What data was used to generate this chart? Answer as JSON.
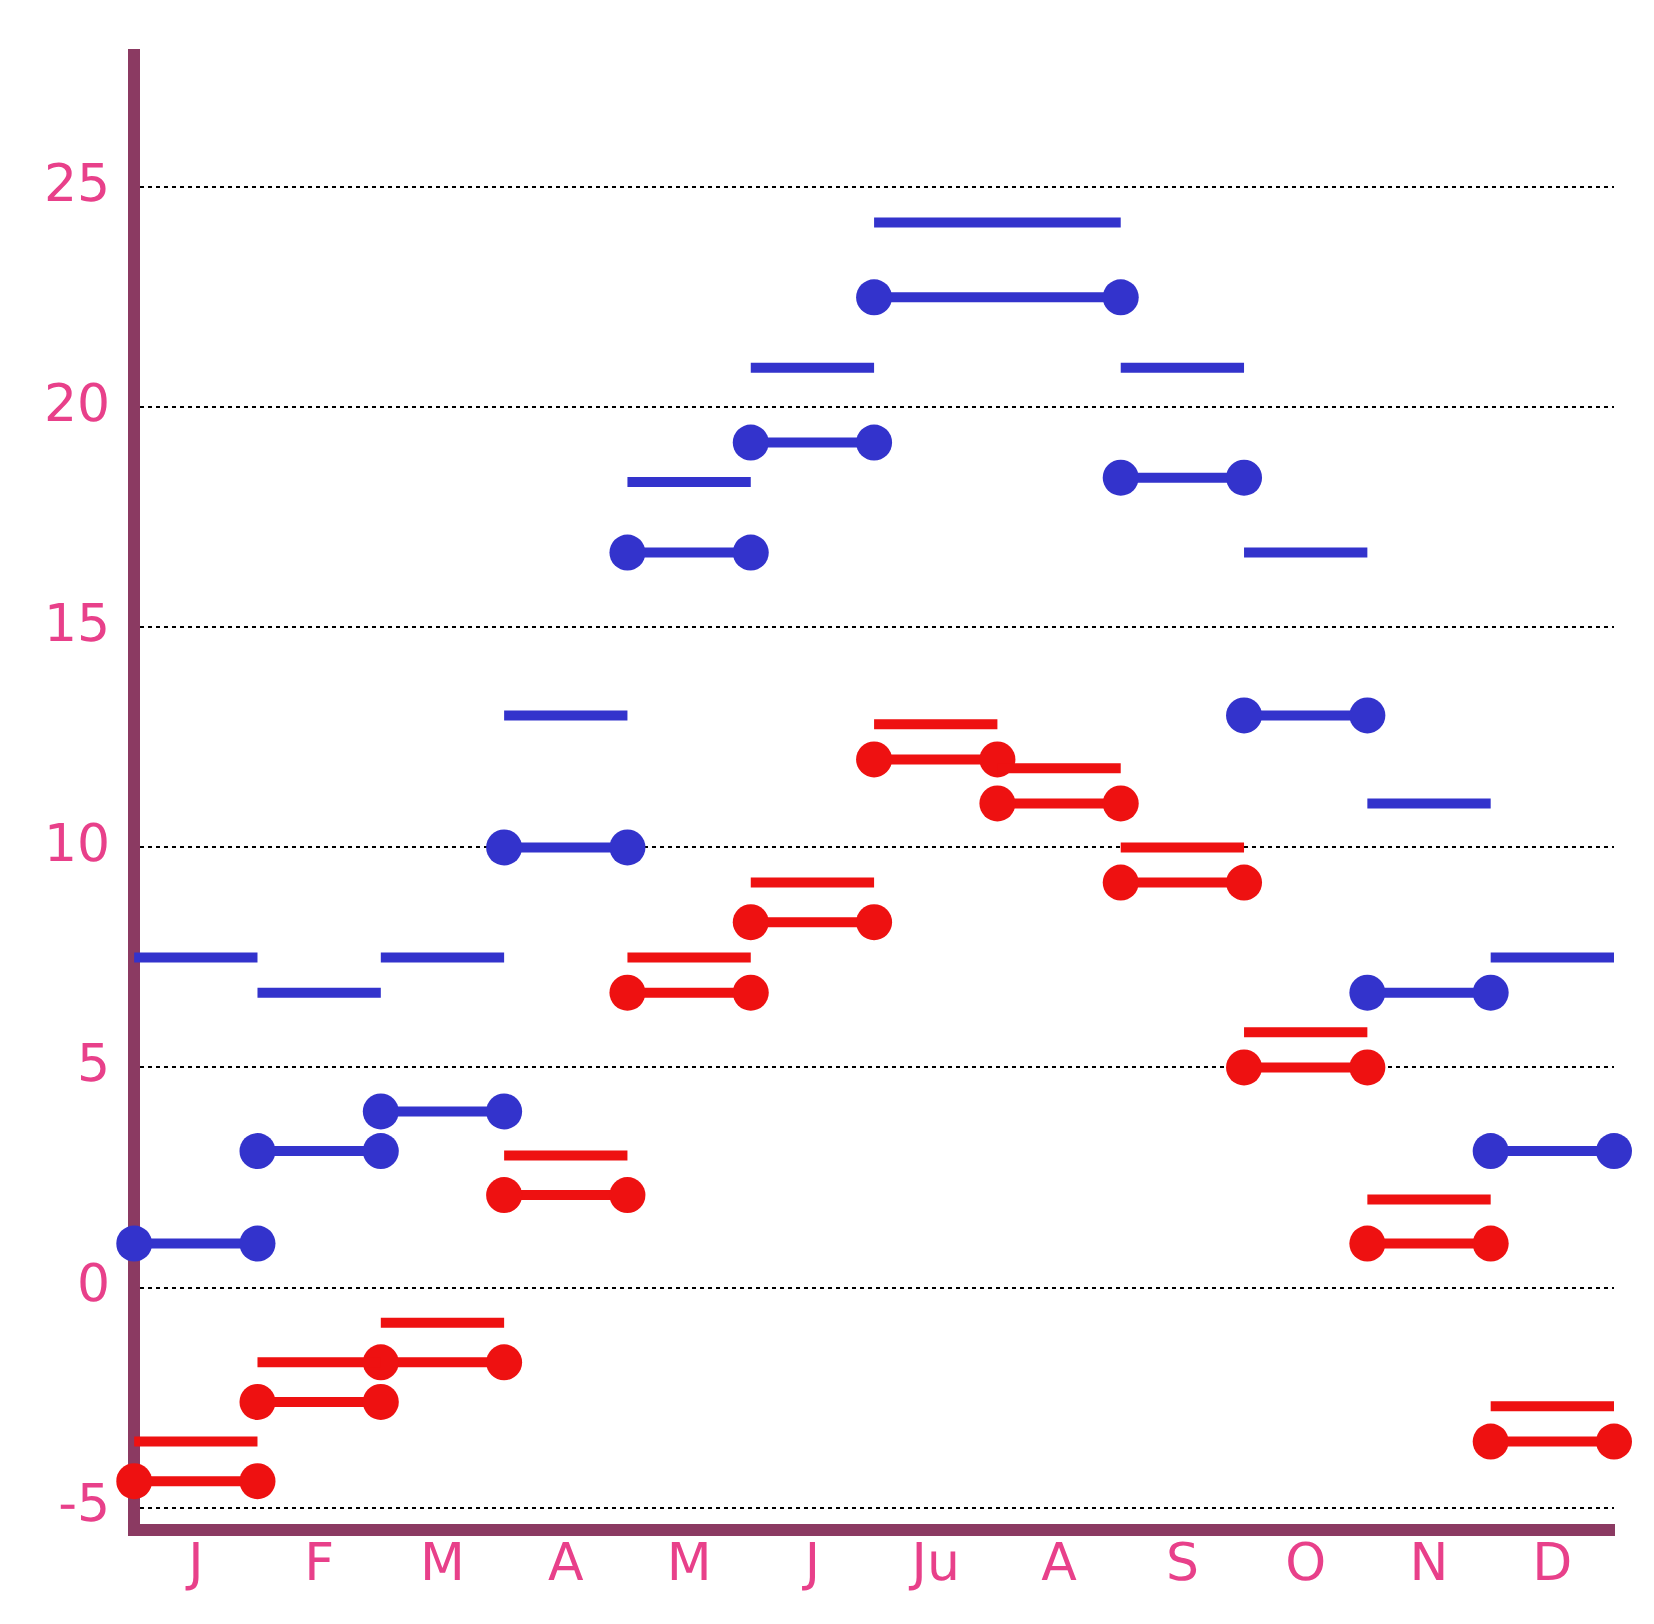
{
  "chart_data": {
    "type": "line",
    "categories": [
      null,
      "J",
      null,
      "F",
      null,
      "M",
      null,
      "A",
      null,
      "M",
      null,
      "J",
      null,
      "Ju",
      null,
      "A",
      null,
      "S",
      null,
      "O",
      null,
      "N",
      null,
      "D",
      null
    ],
    "series": [
      {
        "marker": "none",
        "color": "#3333cc",
        "values": [
          7.5,
          7.5,
          7.5,
          null,
          7.5,
          7.5,
          7.5,
          null,
          18.3,
          18.3,
          18.3,
          null,
          24.2,
          24.2,
          24.2,
          24.2,
          24.2,
          null,
          16.7,
          16.7,
          16.7,
          null,
          7.5,
          7.5,
          7.5
        ]
      },
      {
        "marker": "none",
        "color": "#3333cc",
        "values": [
          null,
          null,
          6.7,
          6.7,
          6.7,
          null,
          13,
          13,
          13,
          null,
          20.9,
          20.9,
          20.9,
          null,
          null,
          null,
          20.9,
          20.9,
          20.9,
          null,
          11,
          11,
          11,
          null,
          null
        ]
      },
      {
        "marker": "circle",
        "color": "#3333cc",
        "values": [
          1,
          1,
          1,
          null,
          4,
          4,
          4,
          null,
          16.7,
          16.7,
          16.7,
          null,
          22.5,
          22.5,
          22.5,
          22.5,
          22.5,
          null,
          13,
          13,
          13,
          null,
          3.1,
          3.1,
          3.1
        ]
      },
      {
        "marker": "circle",
        "color": "#3333cc",
        "values": [
          null,
          null,
          3.1,
          3.1,
          3.1,
          null,
          10,
          10,
          10,
          null,
          19.2,
          19.2,
          19.2,
          null,
          null,
          null,
          18.4,
          18.4,
          18.4,
          null,
          6.7,
          6.7,
          6.7,
          null,
          null
        ]
      },
      {
        "marker": "none",
        "color": "#ee1111",
        "values": [
          -3.5,
          -3.5,
          -3.5,
          null,
          -0.8,
          -0.8,
          -0.8,
          null,
          7.5,
          7.5,
          7.5,
          null,
          12.8,
          12.8,
          12.8,
          null,
          10,
          10,
          10,
          null,
          2,
          2,
          2,
          null,
          null
        ]
      },
      {
        "marker": "none",
        "color": "#ee1111",
        "values": [
          null,
          null,
          -1.7,
          -1.7,
          -1.7,
          null,
          3,
          3,
          3,
          null,
          9.2,
          9.2,
          9.2,
          null,
          11.8,
          11.8,
          11.8,
          null,
          5.8,
          5.8,
          5.8,
          null,
          -2.7,
          -2.7,
          -2.7
        ]
      },
      {
        "marker": "circle",
        "color": "#ee1111",
        "values": [
          -4.4,
          -4.4,
          -4.4,
          null,
          -1.7,
          -1.7,
          -1.7,
          null,
          6.7,
          6.7,
          6.7,
          null,
          12,
          12,
          12,
          null,
          9.2,
          9.2,
          9.2,
          null,
          1,
          1,
          1,
          null,
          null
        ]
      },
      {
        "marker": "circle",
        "color": "#ee1111",
        "values": [
          null,
          null,
          -2.6,
          -2.6,
          -2.6,
          null,
          2.1,
          2.1,
          2.1,
          null,
          8.3,
          8.3,
          8.3,
          null,
          11,
          11,
          11,
          null,
          5,
          5,
          5,
          null,
          -3.5,
          -3.5,
          -3.5
        ]
      }
    ],
    "ylim": [
      -5.5,
      28
    ],
    "yticks": [
      -5,
      0,
      5,
      10,
      15,
      20,
      25
    ],
    "grid": "y",
    "legend": false
  }
}
